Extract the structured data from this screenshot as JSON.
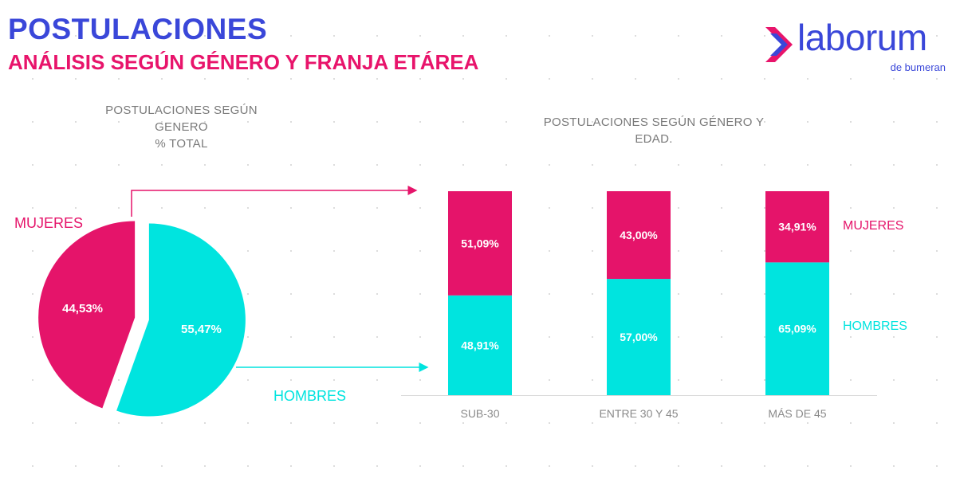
{
  "header": {
    "title": "POSTULACIONES",
    "subtitle": "ANÁLISIS SEGÚN GÉNERO Y FRANJA ETÁREA"
  },
  "logo": {
    "word": "laborum",
    "tagline": "de bumeran",
    "icon": "arrow-chevron-icon"
  },
  "colors": {
    "title": "#3a47d9",
    "accent": "#e8146b",
    "mujeres": "#e5146a",
    "hombres": "#00e4df",
    "axis_text": "#8a8a8a"
  },
  "chart_data": [
    {
      "type": "pie",
      "title": "POSTULACIONES SEGÚN\nGENERO\n% TOTAL",
      "slices": [
        {
          "name": "MUJERES",
          "value": 44.53,
          "label": "44,53%"
        },
        {
          "name": "HOMBRES",
          "value": 55.47,
          "label": "55,47%"
        }
      ]
    },
    {
      "type": "bar",
      "stacked": true,
      "title": "POSTULACIONES SEGÚN GÉNERO Y\nEDAD.",
      "categories": [
        "SUB-30",
        "ENTRE 30 Y 45",
        "MÁS DE 45"
      ],
      "series": [
        {
          "name": "HOMBRES",
          "values": [
            48.91,
            57.0,
            65.09
          ],
          "labels": [
            "48,91%",
            "57,00%",
            "65,09%"
          ]
        },
        {
          "name": "MUJERES",
          "values": [
            51.09,
            43.0,
            34.91
          ],
          "labels": [
            "51,09%",
            "43,00%",
            "34,91%"
          ]
        }
      ],
      "ylim": [
        0,
        100
      ],
      "legend": "right"
    }
  ]
}
